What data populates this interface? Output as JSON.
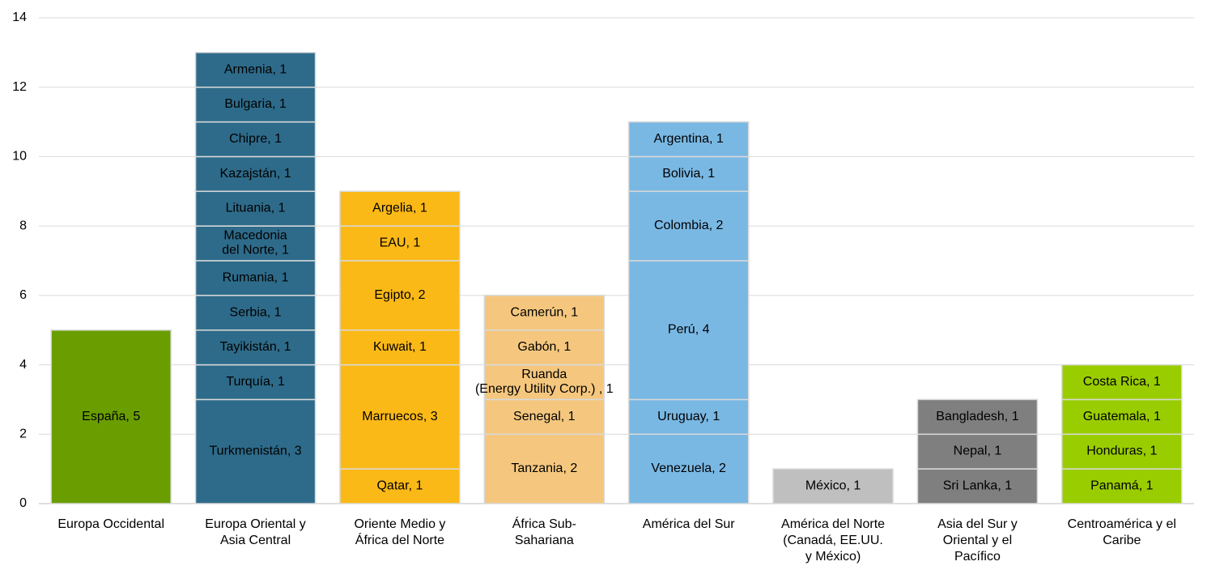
{
  "chart_data": {
    "type": "stacked_bar",
    "categories": [
      "Europa Occidental",
      "Europa Oriental y\nAsia Central",
      "Oriente Medio y\nÁfrica del Norte",
      "África Sub-\nSahariana",
      "América del Sur",
      "América del Norte\n(Canadá, EE.UU.\ny México)",
      "Asia del Sur y\nOriental y el\nPacífico",
      "Centroamérica y el\nCaribe"
    ],
    "colors": [
      "#6a9e00",
      "#2e6b8a",
      "#fbb917",
      "#f5c77e",
      "#7ab8e4",
      "#bfbfbf",
      "#7f7f7f",
      "#9acd00"
    ],
    "label_colors": [
      "#000000",
      "#ffffff",
      "#000000",
      "#000000",
      "#000000",
      "#000000",
      "#000000",
      "#000000"
    ],
    "segments": [
      [
        {
          "value": 5,
          "label": "España, 5"
        }
      ],
      [
        {
          "value": 3,
          "label": "Turkmenistán, 3"
        },
        {
          "value": 1,
          "label": "Turquía, 1"
        },
        {
          "value": 1,
          "label": "Tayikistán, 1"
        },
        {
          "value": 1,
          "label": "Serbia, 1"
        },
        {
          "value": 1,
          "label": "Rumania, 1"
        },
        {
          "value": 1,
          "label": "Macedonia\ndel Norte, 1"
        },
        {
          "value": 1,
          "label": "Lituania, 1"
        },
        {
          "value": 1,
          "label": "Kazajstán, 1"
        },
        {
          "value": 1,
          "label": "Chipre, 1"
        },
        {
          "value": 1,
          "label": "Bulgaria, 1"
        },
        {
          "value": 1,
          "label": "Armenia, 1"
        }
      ],
      [
        {
          "value": 1,
          "label": "Qatar, 1"
        },
        {
          "value": 3,
          "label": "Marruecos, 3"
        },
        {
          "value": 1,
          "label": "Kuwait, 1"
        },
        {
          "value": 2,
          "label": "Egipto, 2"
        },
        {
          "value": 1,
          "label": "EAU, 1"
        },
        {
          "value": 1,
          "label": "Argelia, 1"
        }
      ],
      [
        {
          "value": 2,
          "label": "Tanzania, 2"
        },
        {
          "value": 1,
          "label": "Senegal, 1"
        },
        {
          "value": 1,
          "label": "Ruanda\n(Energy Utility Corp.) , 1"
        },
        {
          "value": 1,
          "label": "Gabón, 1"
        },
        {
          "value": 1,
          "label": "Camerún, 1"
        }
      ],
      [
        {
          "value": 2,
          "label": "Venezuela, 2"
        },
        {
          "value": 1,
          "label": "Uruguay, 1"
        },
        {
          "value": 4,
          "label": "Perú, 4"
        },
        {
          "value": 2,
          "label": "Colombia, 2"
        },
        {
          "value": 1,
          "label": "Bolivia, 1"
        },
        {
          "value": 1,
          "label": "Argentina, 1"
        }
      ],
      [
        {
          "value": 1,
          "label": "México, 1"
        }
      ],
      [
        {
          "value": 1,
          "label": "Sri Lanka, 1"
        },
        {
          "value": 1,
          "label": "Nepal, 1"
        },
        {
          "value": 1,
          "label": "Bangladesh, 1"
        }
      ],
      [
        {
          "value": 1,
          "label": "Panamá, 1"
        },
        {
          "value": 1,
          "label": "Honduras, 1"
        },
        {
          "value": 1,
          "label": "Guatemala, 1"
        },
        {
          "value": 1,
          "label": "Costa Rica, 1"
        }
      ]
    ],
    "ylim": [
      0,
      14
    ],
    "yticks": [
      0,
      2,
      4,
      6,
      8,
      10,
      12,
      14
    ],
    "grid": true
  }
}
